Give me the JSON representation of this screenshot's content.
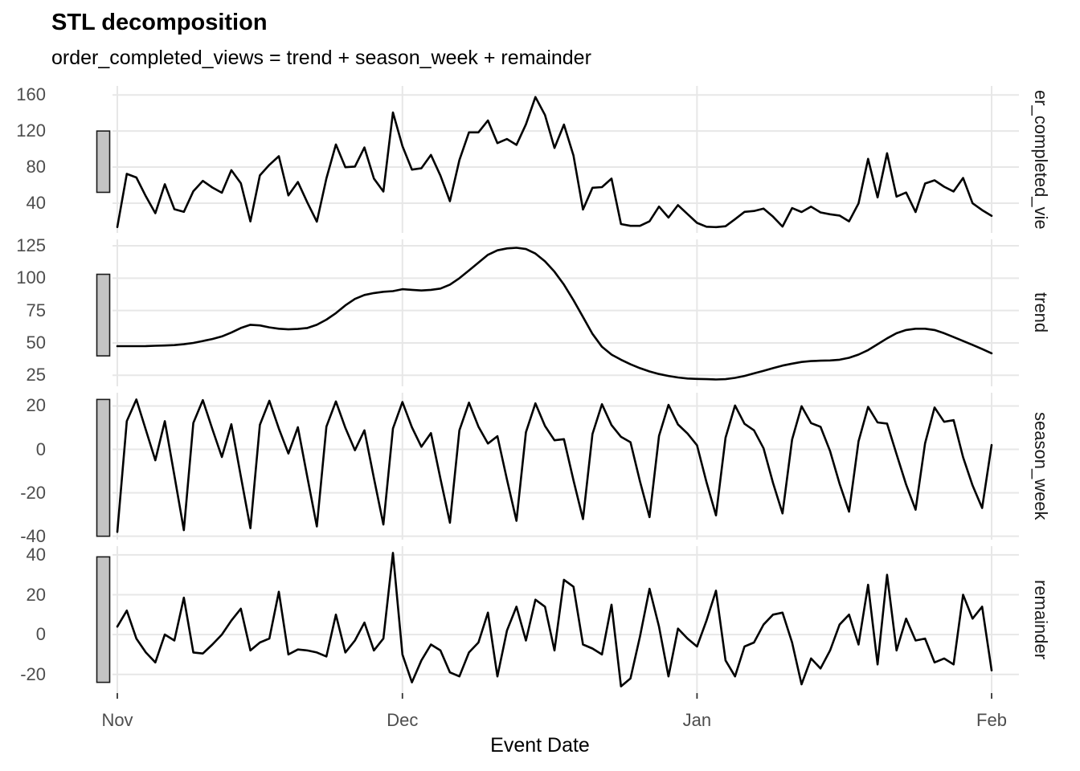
{
  "colors": {
    "line": "#000000",
    "grid": "#E7E7E7",
    "axis_tick": "#333333",
    "axis_text": "#4D4D4D",
    "strip_text": "#1a1a1a",
    "scale_bar_fill": "#C4C4C4",
    "scale_bar_border": "#1a1a1a",
    "background": "#ffffff"
  },
  "chart_data": {
    "type": "line",
    "title": "STL decomposition",
    "subtitle": "order_completed_views = trend + season_week + remainder",
    "xlabel": "Event Date",
    "x_ticks": [
      "Nov",
      "Dec",
      "Jan",
      "Feb"
    ],
    "x_tick_day_index": [
      0,
      30,
      61,
      92
    ],
    "n_days": 93,
    "grid": true,
    "legend": "none",
    "panels": [
      {
        "name": "er_completed_vie",
        "full_name": "order_completed_views",
        "ylim": [
          7,
          170
        ],
        "yticks": [
          160,
          120,
          80,
          40
        ],
        "scale_bar": [
          52,
          120
        ],
        "values": [
          13.5,
          72.5,
          68.5,
          47.6,
          28.8,
          61,
          33.3,
          30.3,
          53.2,
          64.7,
          57.3,
          51.5,
          76.6,
          62.1,
          19.7,
          70.8,
          82.4,
          92.1,
          48.6,
          63.5,
          40.7,
          19.5,
          67.5,
          105.1,
          79.9,
          80.6,
          101.8,
          67.3,
          52.9,
          140.6,
          103.3,
          77.2,
          78.7,
          93.5,
          70.5,
          42.2,
          87.8,
          118.5,
          118.5,
          131.7,
          106.6,
          111.1,
          104.6,
          127.4,
          157.7,
          137.8,
          101.2,
          127.2,
          92.7,
          32.9,
          57.1,
          57.8,
          67.2,
          16.8,
          14.8,
          14.8,
          19.8,
          36.2,
          24,
          37.8,
          27.8,
          18.1,
          13.9,
          13.4,
          14.4,
          22.2,
          30.3,
          31.3,
          34,
          25,
          14,
          34.5,
          30.2,
          36.1,
          29.7,
          27.7,
          26.2,
          19.8,
          39.7,
          89.1,
          46.4,
          95.4,
          47.3,
          51.8,
          30.2,
          61.8,
          65.3,
          58.2,
          53,
          67.9,
          39.9,
          32.3,
          26
        ]
      },
      {
        "name": "trend",
        "ylim": [
          16.5,
          130
        ],
        "yticks": [
          125,
          100,
          75,
          50,
          25
        ],
        "scale_bar": [
          40,
          103
        ],
        "values": [
          47.5,
          47.5,
          47.5,
          47.6,
          47.8,
          48,
          48.3,
          49,
          50,
          51.5,
          53,
          55,
          58,
          61.5,
          64,
          63.5,
          62,
          61,
          60.5,
          60.8,
          61.5,
          64,
          68,
          73,
          79,
          84,
          87,
          88.5,
          89.5,
          90,
          91.5,
          91,
          90.5,
          91,
          92,
          95,
          100,
          106,
          112,
          118,
          121.5,
          123,
          123.5,
          122.5,
          119,
          113,
          105,
          95,
          83,
          70,
          57,
          47,
          41,
          37,
          33.5,
          30.5,
          28,
          26,
          24.5,
          23.3,
          22.5,
          22.2,
          22,
          21.8,
          22,
          23,
          24.5,
          26.5,
          28.5,
          30.5,
          32.5,
          34,
          35.3,
          36,
          36.3,
          36.5,
          37,
          38.5,
          41,
          44.5,
          49,
          53.5,
          57.5,
          60,
          61,
          61,
          60,
          57.5,
          54.5,
          51.5,
          48.5,
          45.3,
          42
        ]
      },
      {
        "name": "season_week",
        "ylim": [
          -41.6,
          26.1
        ],
        "yticks": [
          20,
          0,
          -20,
          -40
        ],
        "scale_bar": [
          -40,
          23
        ],
        "values": [
          -38,
          13,
          23,
          9,
          -5,
          13,
          -12,
          -37.2,
          12.2,
          22.7,
          9.3,
          -3.5,
          11.6,
          -12.4,
          -36.3,
          11.3,
          22.4,
          9.6,
          -1.9,
          10.2,
          -12.8,
          -35.5,
          10.5,
          22.1,
          9.9,
          -0.4,
          8.8,
          -13.2,
          -34.6,
          9.6,
          21.8,
          10.2,
          1.2,
          7.5,
          -13.5,
          -33.8,
          8.8,
          21.5,
          10.5,
          2.7,
          6.1,
          -13.9,
          -32.9,
          7.9,
          21.2,
          10.8,
          4.2,
          4.7,
          -14.3,
          -32.1,
          7.1,
          20.8,
          11.2,
          5.8,
          3.3,
          -14.7,
          -31.2,
          6.2,
          20.5,
          11.5,
          7.3,
          1.9,
          -15.1,
          -30.4,
          5.4,
          20.2,
          11.8,
          8.8,
          0.5,
          -15.5,
          -29.5,
          4.5,
          19.9,
          12.1,
          10.4,
          -0.8,
          -15.8,
          -28.7,
          3.7,
          19.6,
          12.4,
          11.9,
          -2.2,
          -16.2,
          -27.8,
          2.8,
          19.3,
          12.7,
          13.5,
          -3.6,
          -16.6,
          -27,
          2
        ]
      },
      {
        "name": "remainder",
        "ylim": [
          -29.4,
          44.4
        ],
        "yticks": [
          40,
          20,
          0,
          -20
        ],
        "scale_bar": [
          -24,
          39
        ],
        "values": [
          4,
          12,
          -2,
          -9,
          -14,
          0,
          -3,
          18.5,
          -9,
          -9.5,
          -5,
          0,
          7,
          13,
          -8,
          -4,
          -2,
          21.5,
          -10,
          -7.5,
          -8,
          -9,
          -11,
          10,
          -9,
          -3,
          6,
          -8,
          -2,
          41,
          -10,
          -24,
          -13,
          -5,
          -8,
          -19,
          -21,
          -9,
          -4,
          11,
          -21,
          2,
          14,
          -3,
          17.5,
          14,
          -8,
          27.5,
          24,
          -5,
          -7,
          -10,
          15,
          -26,
          -22,
          -1,
          23,
          4,
          -21,
          3,
          -2,
          -6,
          7,
          22,
          -13,
          -21,
          -6,
          -4,
          5,
          10,
          11,
          -4,
          -25,
          -12,
          -17,
          -8,
          5,
          10,
          -5,
          25,
          -15,
          30,
          -8,
          8,
          -3,
          -2,
          -14,
          -12,
          -15,
          20,
          8,
          14,
          -18
        ]
      }
    ]
  }
}
